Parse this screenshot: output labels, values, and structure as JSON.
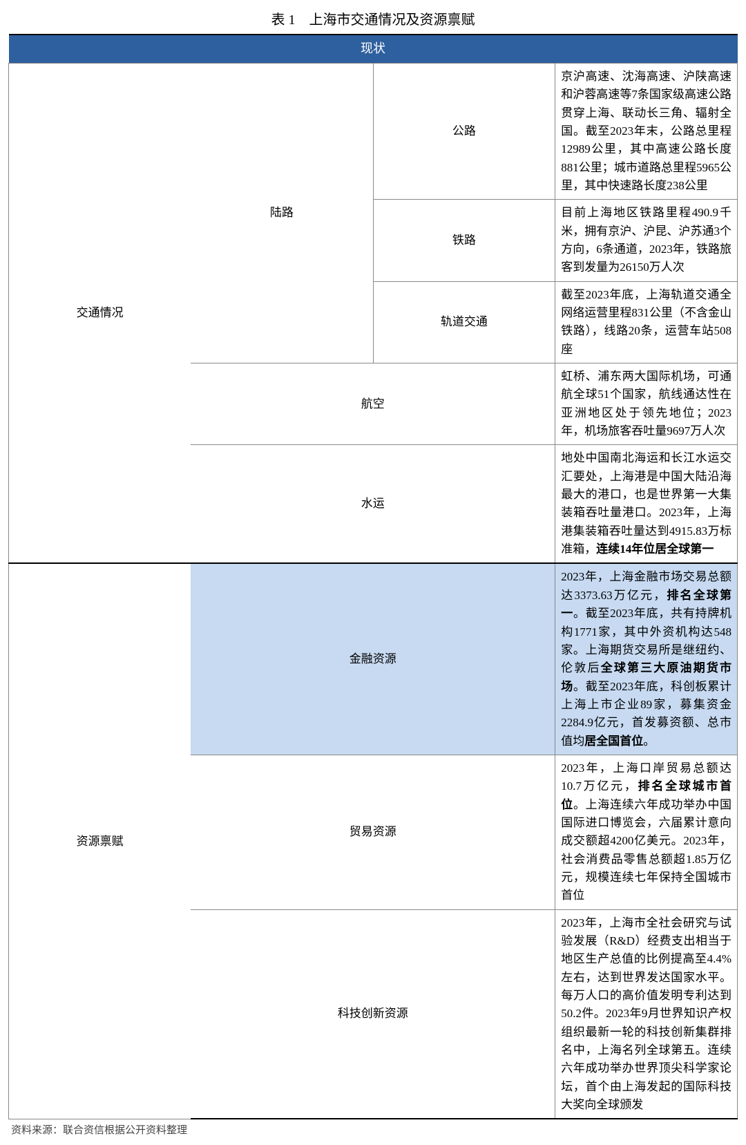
{
  "title": "表 1　上海市交通情况及资源禀赋",
  "header": "现状",
  "colors": {
    "header_bg": "#2e5f9e",
    "header_text": "#ffffff",
    "border": "#888888",
    "shaded_bg": "#c7daf1",
    "thick_border": "#000000",
    "text": "#000000",
    "bg": "#ffffff"
  },
  "cat1": "交通情况",
  "cat2": "资源禀赋",
  "sub_land": "陆路",
  "rows": {
    "road": {
      "label": "公路",
      "text_a": "京沪高速、沈海高速、沪陕高速和沪蓉高速等7条国家级高速公路贯穿上海、联动长三角、辐射全国。截至2023年末，公路总里程12989公里，其中高速公路长度881公里；城市道路总里程5965公里，其中快速路长度238公里"
    },
    "rail": {
      "label": "铁路",
      "text_a": "目前上海地区铁路里程490.9千米，拥有京沪、沪昆、沪苏通3个方向，6条通道，2023年，铁路旅客到发量为26150万人次"
    },
    "metro": {
      "label": "轨道交通",
      "text_a": "截至2023年底，上海轨道交通全网络运营里程831公里（不含金山铁路），线路20条，运营车站508座"
    },
    "air": {
      "label": "航空",
      "text_a": "虹桥、浦东两大国际机场，可通航全球51个国家，航线通达性在亚洲地区处于领先地位；2023年，机场旅客吞吐量9697万人次"
    },
    "water": {
      "label": "水运",
      "text_a": "地处中国南北海运和长江水运交汇要处，上海港是中国大陆沿海最大的港口，也是世界第一大集装箱吞吐量港口。2023年，上海港集装箱吞吐量达到4915.83万标准箱，",
      "bold_a": "连续14年位居全球第一"
    },
    "fin": {
      "label": "金融资源",
      "text_a": "2023年，上海金融市场交易总额达3373.63万亿元，",
      "bold_a": "排名全球第一",
      "text_b": "。截至2023年底，共有持牌机构1771家，其中外资机构达548家。上海期货交易所是继纽约、伦敦后",
      "bold_b": "全球第三大原油期货市场",
      "text_c": "。截至2023年底，科创板累计上海上市企业89家，募集资金2284.9亿元，首发募资额、总市值均",
      "bold_c": "居全国首位",
      "text_d": "。"
    },
    "trade": {
      "label": "贸易资源",
      "text_a": "2023年，上海口岸贸易总额达10.7万亿元，",
      "bold_a": "排名全球城市首位",
      "text_b": "。上海连续六年成功举办中国国际进口博览会，六届累计意向成交额超4200亿美元。2023年，社会消费品零售总额超1.85万亿元，规模连续七年保持全国城市首位"
    },
    "tech": {
      "label": "科技创新资源",
      "text_a": "2023年，上海市全社会研究与试验发展（R&D）经费支出相当于地区生产总值的比例提高至4.4%左右，达到世界发达国家水平。每万人口的高价值发明专利达到50.2件。2023年9月世界知识产权组织最新一轮的科技创新集群排名中，上海名列全球第五。连续六年成功举办世界顶尖科学家论坛，首个由上海发起的国际科技大奖向全球颁发"
    }
  },
  "source": "资料来源：联合资信根据公开资料整理"
}
